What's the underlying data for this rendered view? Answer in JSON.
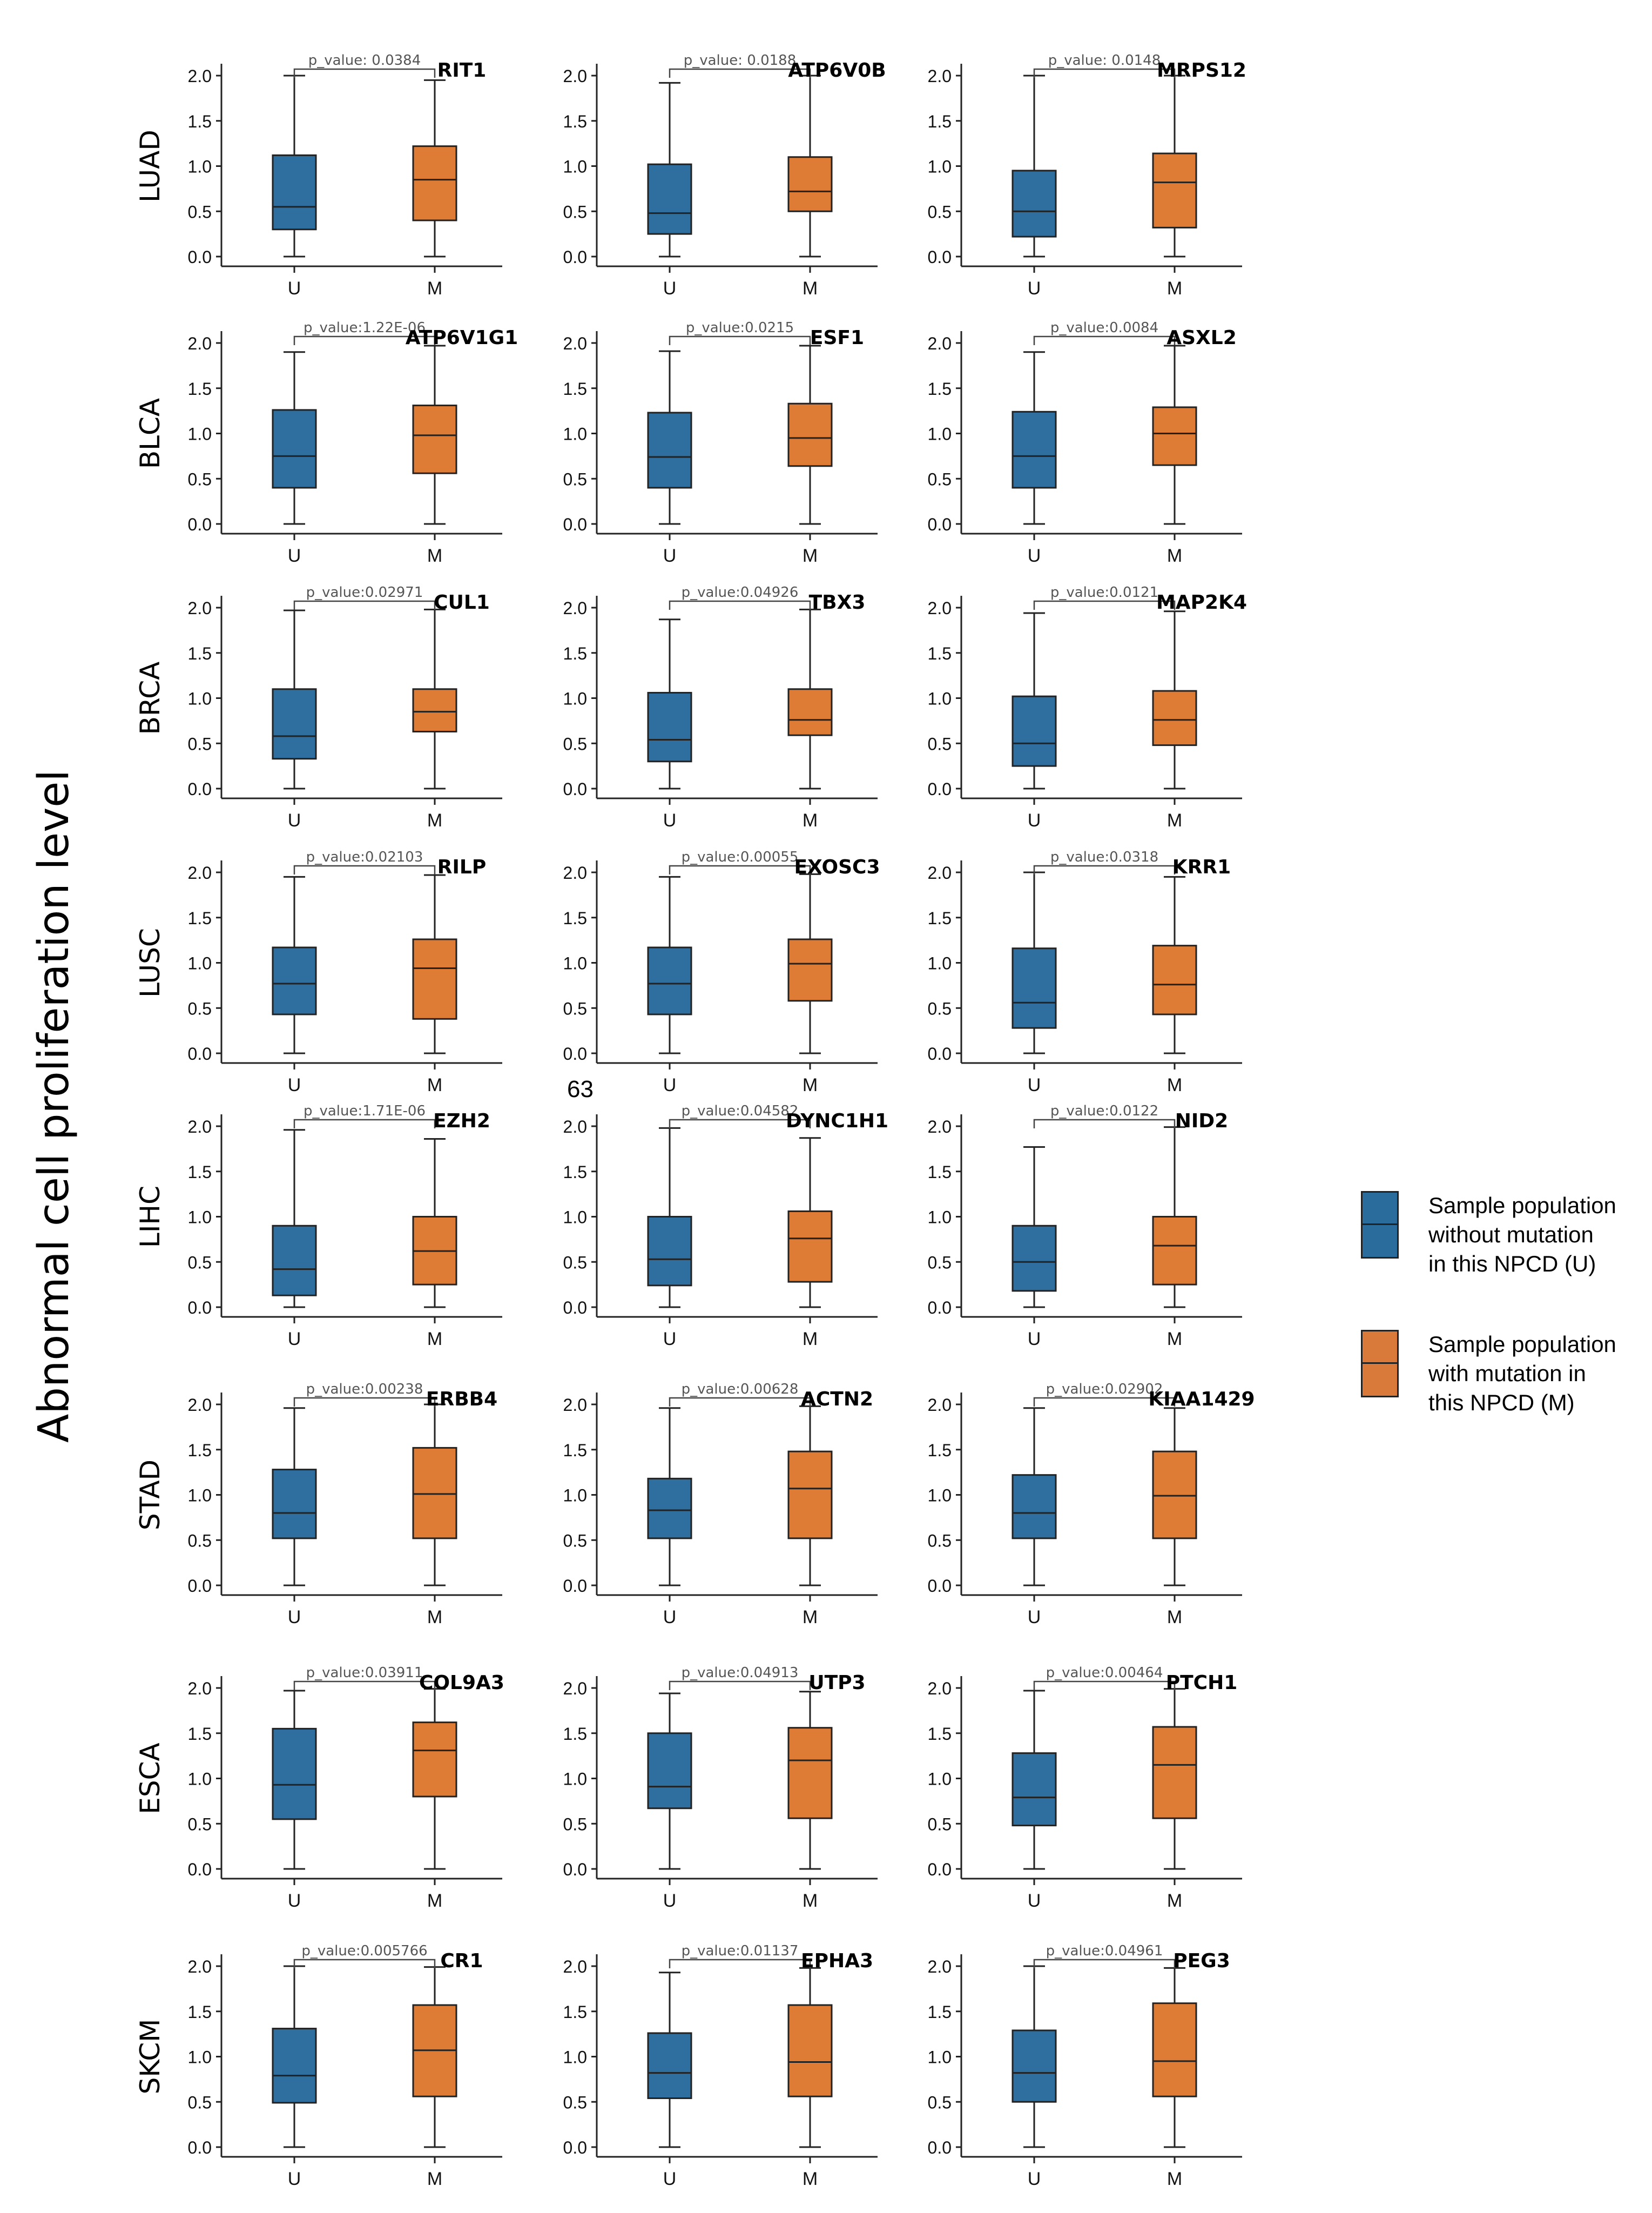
{
  "figure": {
    "y_axis_label": "Abnormal cell proliferation level",
    "stray_label": "63",
    "cancer_types": [
      "LUAD",
      "BLCA",
      "BRCA",
      "LUSC",
      "LIHC",
      "STAD",
      "ESCA",
      "SKCM"
    ]
  },
  "legend": {
    "items": [
      {
        "key": "U",
        "lines": [
          "Sample population",
          "without mutation",
          "in this NPCD (U)"
        ],
        "color": "#2a6c9c"
      },
      {
        "key": "M",
        "lines": [
          "Sample population",
          "with mutation in",
          "this NPCD (M)"
        ],
        "color": "#d97a3a"
      }
    ]
  },
  "colors": {
    "unmutated": "#2f6f9f",
    "mutated": "#de7b35",
    "axis": "#222222",
    "bracket": "#444444"
  },
  "chart_data": [
    {
      "type": "box",
      "cancer": "LUAD",
      "gene": "RIT1",
      "p_value": "p_value: 0.0384",
      "categories": [
        "U",
        "M"
      ],
      "yticks": [
        "0.0",
        "0.5",
        "1.0",
        "1.5",
        "2.0"
      ],
      "ylim": [
        0,
        2
      ],
      "series": [
        {
          "name": "U",
          "min": 0.0,
          "q1": 0.3,
          "median": 0.55,
          "q3": 1.12,
          "max": 2.0
        },
        {
          "name": "M",
          "min": 0.0,
          "q1": 0.4,
          "median": 0.85,
          "q3": 1.22,
          "max": 1.95
        }
      ]
    },
    {
      "type": "box",
      "cancer": "LUAD",
      "gene": "ATP6V0B",
      "p_value": "p_value: 0.0188",
      "categories": [
        "U",
        "M"
      ],
      "yticks": [
        "0.0",
        "0.5",
        "1.0",
        "1.5",
        "2.0"
      ],
      "ylim": [
        0,
        2
      ],
      "series": [
        {
          "name": "U",
          "min": 0.0,
          "q1": 0.25,
          "median": 0.48,
          "q3": 1.02,
          "max": 1.92
        },
        {
          "name": "M",
          "min": 0.0,
          "q1": 0.5,
          "median": 0.72,
          "q3": 1.1,
          "max": 2.0
        }
      ]
    },
    {
      "type": "box",
      "cancer": "LUAD",
      "gene": "MRPS12",
      "p_value": "p_value: 0.0148",
      "categories": [
        "U",
        "M"
      ],
      "yticks": [
        "0.0",
        "0.5",
        "1.0",
        "1.5",
        "2.0"
      ],
      "ylim": [
        0,
        2
      ],
      "series": [
        {
          "name": "U",
          "min": 0.0,
          "q1": 0.22,
          "median": 0.5,
          "q3": 0.95,
          "max": 2.0
        },
        {
          "name": "M",
          "min": 0.0,
          "q1": 0.32,
          "median": 0.82,
          "q3": 1.14,
          "max": 2.0
        }
      ]
    },
    {
      "type": "box",
      "cancer": "BLCA",
      "gene": "ATP6V1G1",
      "p_value": "p_value:1.22E-06",
      "categories": [
        "U",
        "M"
      ],
      "yticks": [
        "0.0",
        "0.5",
        "1.0",
        "1.5",
        "2.0"
      ],
      "ylim": [
        0,
        2
      ],
      "series": [
        {
          "name": "U",
          "min": 0.0,
          "q1": 0.4,
          "median": 0.75,
          "q3": 1.26,
          "max": 1.9
        },
        {
          "name": "M",
          "min": 0.0,
          "q1": 0.56,
          "median": 0.98,
          "q3": 1.31,
          "max": 1.97
        }
      ]
    },
    {
      "type": "box",
      "cancer": "BLCA",
      "gene": "ESF1",
      "p_value": "p_value:0.0215",
      "categories": [
        "U",
        "M"
      ],
      "yticks": [
        "0.0",
        "0.5",
        "1.0",
        "1.5",
        "2.0"
      ],
      "ylim": [
        0,
        2
      ],
      "series": [
        {
          "name": "U",
          "min": 0.0,
          "q1": 0.4,
          "median": 0.74,
          "q3": 1.23,
          "max": 1.91
        },
        {
          "name": "M",
          "min": 0.0,
          "q1": 0.64,
          "median": 0.95,
          "q3": 1.33,
          "max": 1.97
        }
      ]
    },
    {
      "type": "box",
      "cancer": "BLCA",
      "gene": "ASXL2",
      "p_value": "p_value:0.0084",
      "categories": [
        "U",
        "M"
      ],
      "yticks": [
        "0.0",
        "0.5",
        "1.0",
        "1.5",
        "2.0"
      ],
      "ylim": [
        0,
        2
      ],
      "series": [
        {
          "name": "U",
          "min": 0.0,
          "q1": 0.4,
          "median": 0.75,
          "q3": 1.24,
          "max": 1.9
        },
        {
          "name": "M",
          "min": 0.0,
          "q1": 0.65,
          "median": 1.0,
          "q3": 1.29,
          "max": 1.97
        }
      ]
    },
    {
      "type": "box",
      "cancer": "BRCA",
      "gene": "CUL1",
      "p_value": "p_value:0.02971",
      "categories": [
        "U",
        "M"
      ],
      "yticks": [
        "0.0",
        "0.5",
        "1.0",
        "1.5",
        "2.0"
      ],
      "ylim": [
        0,
        2
      ],
      "series": [
        {
          "name": "U",
          "min": 0.0,
          "q1": 0.33,
          "median": 0.58,
          "q3": 1.1,
          "max": 1.97
        },
        {
          "name": "M",
          "min": 0.0,
          "q1": 0.63,
          "median": 0.85,
          "q3": 1.1,
          "max": 1.98
        }
      ]
    },
    {
      "type": "box",
      "cancer": "BRCA",
      "gene": "TBX3",
      "p_value": "p_value:0.04926",
      "categories": [
        "U",
        "M"
      ],
      "yticks": [
        "0.0",
        "0.5",
        "1.0",
        "1.5",
        "2.0"
      ],
      "ylim": [
        0,
        2
      ],
      "series": [
        {
          "name": "U",
          "min": 0.0,
          "q1": 0.3,
          "median": 0.54,
          "q3": 1.06,
          "max": 1.87
        },
        {
          "name": "M",
          "min": 0.0,
          "q1": 0.59,
          "median": 0.76,
          "q3": 1.1,
          "max": 1.98
        }
      ]
    },
    {
      "type": "box",
      "cancer": "BRCA",
      "gene": "MAP2K4",
      "p_value": "p_value:0.0121",
      "categories": [
        "U",
        "M"
      ],
      "yticks": [
        "0.0",
        "0.5",
        "1.0",
        "1.5",
        "2.0"
      ],
      "ylim": [
        0,
        2
      ],
      "series": [
        {
          "name": "U",
          "min": 0.0,
          "q1": 0.25,
          "median": 0.5,
          "q3": 1.02,
          "max": 1.94
        },
        {
          "name": "M",
          "min": 0.0,
          "q1": 0.48,
          "median": 0.76,
          "q3": 1.08,
          "max": 1.96
        }
      ]
    },
    {
      "type": "box",
      "cancer": "LUSC",
      "gene": "RILP",
      "p_value": "p_value:0.02103",
      "categories": [
        "U",
        "M"
      ],
      "yticks": [
        "0.0",
        "0.5",
        "1.0",
        "1.5",
        "2.0"
      ],
      "ylim": [
        0,
        2
      ],
      "series": [
        {
          "name": "U",
          "min": 0.0,
          "q1": 0.43,
          "median": 0.77,
          "q3": 1.17,
          "max": 1.95
        },
        {
          "name": "M",
          "min": 0.0,
          "q1": 0.38,
          "median": 0.94,
          "q3": 1.26,
          "max": 1.97
        }
      ]
    },
    {
      "type": "box",
      "cancer": "LUSC",
      "gene": "EXOSC3",
      "p_value": "p_value:0.00055",
      "categories": [
        "U",
        "M"
      ],
      "yticks": [
        "0.0",
        "0.5",
        "1.0",
        "1.5",
        "2.0"
      ],
      "ylim": [
        0,
        2
      ],
      "series": [
        {
          "name": "U",
          "min": 0.0,
          "q1": 0.43,
          "median": 0.77,
          "q3": 1.17,
          "max": 1.95
        },
        {
          "name": "M",
          "min": 0.0,
          "q1": 0.58,
          "median": 0.99,
          "q3": 1.26,
          "max": 1.98
        }
      ]
    },
    {
      "type": "box",
      "cancer": "LUSC",
      "gene": "KRR1",
      "p_value": "p_value:0.0318",
      "categories": [
        "U",
        "M"
      ],
      "yticks": [
        "0.0",
        "0.5",
        "1.0",
        "1.5",
        "2.0"
      ],
      "ylim": [
        0,
        2
      ],
      "series": [
        {
          "name": "U",
          "min": 0.0,
          "q1": 0.28,
          "median": 0.56,
          "q3": 1.16,
          "max": 2.0
        },
        {
          "name": "M",
          "min": 0.0,
          "q1": 0.43,
          "median": 0.76,
          "q3": 1.19,
          "max": 1.95
        }
      ]
    },
    {
      "type": "box",
      "cancer": "LIHC",
      "gene": "EZH2",
      "p_value": "p_value:1.71E-06",
      "categories": [
        "U",
        "M"
      ],
      "yticks": [
        "0.0",
        "0.5",
        "1.0",
        "1.5",
        "2.0"
      ],
      "ylim": [
        0,
        2
      ],
      "series": [
        {
          "name": "U",
          "min": 0.0,
          "q1": 0.13,
          "median": 0.42,
          "q3": 0.9,
          "max": 1.96
        },
        {
          "name": "M",
          "min": 0.0,
          "q1": 0.25,
          "median": 0.62,
          "q3": 1.0,
          "max": 1.86
        }
      ]
    },
    {
      "type": "box",
      "cancer": "LIHC",
      "gene": "DYNC1H1",
      "p_value": "p_value:0.04582",
      "categories": [
        "U",
        "M"
      ],
      "yticks": [
        "0.0",
        "0.5",
        "1.0",
        "1.5",
        "2.0"
      ],
      "ylim": [
        0,
        2
      ],
      "series": [
        {
          "name": "U",
          "min": 0.0,
          "q1": 0.24,
          "median": 0.53,
          "q3": 1.0,
          "max": 1.98
        },
        {
          "name": "M",
          "min": 0.0,
          "q1": 0.28,
          "median": 0.76,
          "q3": 1.06,
          "max": 1.87
        }
      ]
    },
    {
      "type": "box",
      "cancer": "LIHC",
      "gene": "NID2",
      "p_value": "p_value:0.0122",
      "categories": [
        "U",
        "M"
      ],
      "yticks": [
        "0.0",
        "0.5",
        "1.0",
        "1.5",
        "2.0"
      ],
      "ylim": [
        0,
        2
      ],
      "series": [
        {
          "name": "U",
          "min": 0.0,
          "q1": 0.18,
          "median": 0.5,
          "q3": 0.9,
          "max": 1.77
        },
        {
          "name": "M",
          "min": 0.0,
          "q1": 0.25,
          "median": 0.68,
          "q3": 1.0,
          "max": 1.99
        }
      ]
    },
    {
      "type": "box",
      "cancer": "STAD",
      "gene": "ERBB4",
      "p_value": "p_value:0.00238",
      "categories": [
        "U",
        "M"
      ],
      "yticks": [
        "0.0",
        "0.5",
        "1.0",
        "1.5",
        "2.0"
      ],
      "ylim": [
        0,
        2
      ],
      "series": [
        {
          "name": "U",
          "min": 0.0,
          "q1": 0.52,
          "median": 0.8,
          "q3": 1.28,
          "max": 1.96
        },
        {
          "name": "M",
          "min": 0.0,
          "q1": 0.52,
          "median": 1.01,
          "q3": 1.52,
          "max": 2.0
        }
      ]
    },
    {
      "type": "box",
      "cancer": "STAD",
      "gene": "ACTN2",
      "p_value": "p_value:0.00628",
      "categories": [
        "U",
        "M"
      ],
      "yticks": [
        "0.0",
        "0.5",
        "1.0",
        "1.5",
        "2.0"
      ],
      "ylim": [
        0,
        2
      ],
      "series": [
        {
          "name": "U",
          "min": 0.0,
          "q1": 0.52,
          "median": 0.83,
          "q3": 1.18,
          "max": 1.96
        },
        {
          "name": "M",
          "min": 0.0,
          "q1": 0.52,
          "median": 1.07,
          "q3": 1.48,
          "max": 1.98
        }
      ]
    },
    {
      "type": "box",
      "cancer": "STAD",
      "gene": "KIAA1429",
      "p_value": "p_value:0.02902",
      "categories": [
        "U",
        "M"
      ],
      "yticks": [
        "0.0",
        "0.5",
        "1.0",
        "1.5",
        "2.0"
      ],
      "ylim": [
        0,
        2
      ],
      "series": [
        {
          "name": "U",
          "min": 0.0,
          "q1": 0.52,
          "median": 0.8,
          "q3": 1.22,
          "max": 1.96
        },
        {
          "name": "M",
          "min": 0.0,
          "q1": 0.52,
          "median": 0.99,
          "q3": 1.48,
          "max": 1.96
        }
      ]
    },
    {
      "type": "box",
      "cancer": "ESCA",
      "gene": "COL9A3",
      "p_value": "p_value:0.03911",
      "categories": [
        "U",
        "M"
      ],
      "yticks": [
        "0.0",
        "0.5",
        "1.0",
        "1.5",
        "2.0"
      ],
      "ylim": [
        0,
        2
      ],
      "series": [
        {
          "name": "U",
          "min": 0.0,
          "q1": 0.55,
          "median": 0.93,
          "q3": 1.55,
          "max": 1.97
        },
        {
          "name": "M",
          "min": 0.0,
          "q1": 0.8,
          "median": 1.31,
          "q3": 1.62,
          "max": 1.99
        }
      ]
    },
    {
      "type": "box",
      "cancer": "ESCA",
      "gene": "UTP3",
      "p_value": "p_value:0.04913",
      "categories": [
        "U",
        "M"
      ],
      "yticks": [
        "0.0",
        "0.5",
        "1.0",
        "1.5",
        "2.0"
      ],
      "ylim": [
        0,
        2
      ],
      "series": [
        {
          "name": "U",
          "min": 0.0,
          "q1": 0.67,
          "median": 0.91,
          "q3": 1.5,
          "max": 1.94
        },
        {
          "name": "M",
          "min": 0.0,
          "q1": 0.56,
          "median": 1.2,
          "q3": 1.56,
          "max": 1.96
        }
      ]
    },
    {
      "type": "box",
      "cancer": "ESCA",
      "gene": "PTCH1",
      "p_value": "p_value:0.00464",
      "categories": [
        "U",
        "M"
      ],
      "yticks": [
        "0.0",
        "0.5",
        "1.0",
        "1.5",
        "2.0"
      ],
      "ylim": [
        0,
        2
      ],
      "series": [
        {
          "name": "U",
          "min": 0.0,
          "q1": 0.48,
          "median": 0.79,
          "q3": 1.28,
          "max": 1.97
        },
        {
          "name": "M",
          "min": 0.0,
          "q1": 0.56,
          "median": 1.15,
          "q3": 1.57,
          "max": 1.99
        }
      ]
    },
    {
      "type": "box",
      "cancer": "SKCM",
      "gene": "CR1",
      "p_value": "p_value:0.005766",
      "categories": [
        "U",
        "M"
      ],
      "yticks": [
        "0.0",
        "0.5",
        "1.0",
        "1.5",
        "2.0"
      ],
      "ylim": [
        0,
        2
      ],
      "series": [
        {
          "name": "U",
          "min": 0.0,
          "q1": 0.49,
          "median": 0.79,
          "q3": 1.31,
          "max": 2.0
        },
        {
          "name": "M",
          "min": 0.0,
          "q1": 0.56,
          "median": 1.07,
          "q3": 1.57,
          "max": 1.99
        }
      ]
    },
    {
      "type": "box",
      "cancer": "SKCM",
      "gene": "EPHA3",
      "p_value": "p_value:0.01137",
      "categories": [
        "U",
        "M"
      ],
      "yticks": [
        "0.0",
        "0.5",
        "1.0",
        "1.5",
        "2.0"
      ],
      "ylim": [
        0,
        2
      ],
      "series": [
        {
          "name": "U",
          "min": 0.0,
          "q1": 0.54,
          "median": 0.82,
          "q3": 1.26,
          "max": 1.93
        },
        {
          "name": "M",
          "min": 0.0,
          "q1": 0.56,
          "median": 0.94,
          "q3": 1.57,
          "max": 1.98
        }
      ]
    },
    {
      "type": "box",
      "cancer": "SKCM",
      "gene": "PEG3",
      "p_value": "p_value:0.04961",
      "categories": [
        "U",
        "M"
      ],
      "yticks": [
        "0.0",
        "0.5",
        "1.0",
        "1.5",
        "2.0"
      ],
      "ylim": [
        0,
        2
      ],
      "series": [
        {
          "name": "U",
          "min": 0.0,
          "q1": 0.5,
          "median": 0.82,
          "q3": 1.29,
          "max": 2.0
        },
        {
          "name": "M",
          "min": 0.0,
          "q1": 0.56,
          "median": 0.95,
          "q3": 1.59,
          "max": 1.98
        }
      ]
    }
  ]
}
